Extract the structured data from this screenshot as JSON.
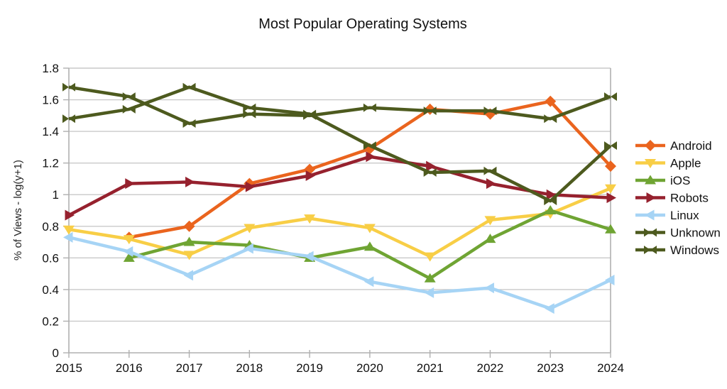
{
  "chart_data": {
    "type": "line",
    "title": "Most Popular Operating Systems",
    "xlabel": "",
    "ylabel": "% of Views - log(y+1)",
    "x": [
      "2015",
      "2016",
      "2017",
      "2018",
      "2019",
      "2020",
      "2021",
      "2022",
      "2023",
      "2024"
    ],
    "ylim": [
      0,
      1.8
    ],
    "yticks": [
      0,
      0.2,
      0.4,
      0.6,
      0.8,
      1.0,
      1.2,
      1.4,
      1.6,
      1.8
    ],
    "ytick_labels": [
      "0",
      "0.2",
      "0.4",
      "0.6",
      "0.8",
      "1",
      "1.2",
      "1.4",
      "1.6",
      "1.8"
    ],
    "grid": true,
    "legend_position": "right",
    "colors": {
      "grid": "#c9c9c9",
      "axis": "#b0b0b0",
      "text": "#111111"
    },
    "series": [
      {
        "name": "Android",
        "color": "#ea641e",
        "marker": "diamond",
        "values": [
          null,
          0.73,
          0.8,
          1.07,
          1.16,
          1.29,
          1.54,
          1.51,
          1.59,
          1.18
        ]
      },
      {
        "name": "Apple",
        "color": "#f8ce46",
        "marker": "triangle-down",
        "values": [
          0.78,
          0.72,
          0.62,
          0.79,
          0.85,
          0.79,
          0.61,
          0.84,
          0.88,
          1.04
        ]
      },
      {
        "name": "iOS",
        "color": "#6fa433",
        "marker": "triangle-up",
        "values": [
          null,
          0.6,
          0.7,
          0.68,
          0.6,
          0.67,
          0.47,
          0.72,
          0.9,
          0.78
        ]
      },
      {
        "name": "Robots",
        "color": "#96212e",
        "marker": "triangle-right",
        "values": [
          0.87,
          1.07,
          1.08,
          1.05,
          1.12,
          1.24,
          1.18,
          1.07,
          1.0,
          0.98
        ]
      },
      {
        "name": "Linux",
        "color": "#a6d4f5",
        "marker": "triangle-left",
        "values": [
          0.73,
          0.64,
          0.49,
          0.66,
          0.61,
          0.45,
          0.38,
          0.41,
          0.28,
          0.46
        ]
      },
      {
        "name": "Unknown",
        "color": "#4d5a1e",
        "marker": "bowtie",
        "values": [
          1.68,
          1.62,
          1.45,
          1.51,
          1.5,
          1.55,
          1.53,
          1.53,
          1.48,
          1.62
        ]
      },
      {
        "name": "Windows",
        "color": "#4d5a1e",
        "marker": "bowtie",
        "values": [
          1.48,
          1.54,
          1.68,
          1.55,
          1.51,
          1.31,
          1.14,
          1.15,
          0.96,
          1.31
        ]
      }
    ]
  }
}
